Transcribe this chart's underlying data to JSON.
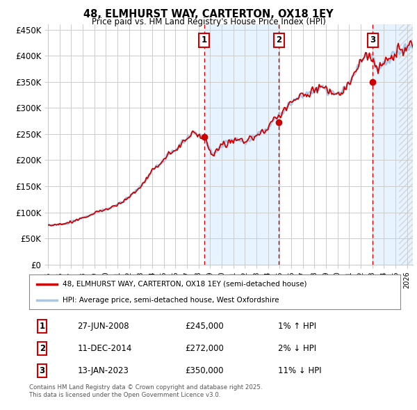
{
  "title": "48, ELMHURST WAY, CARTERTON, OX18 1EY",
  "subtitle": "Price paid vs. HM Land Registry's House Price Index (HPI)",
  "ylabel_ticks": [
    "£0",
    "£50K",
    "£100K",
    "£150K",
    "£200K",
    "£250K",
    "£300K",
    "£350K",
    "£400K",
    "£450K"
  ],
  "ytick_vals": [
    0,
    50000,
    100000,
    150000,
    200000,
    250000,
    300000,
    350000,
    400000,
    450000
  ],
  "ylim": [
    0,
    460000
  ],
  "xlim_start": 1995.0,
  "xlim_end": 2026.5,
  "hpi_color": "#a8c8e8",
  "price_color": "#cc0000",
  "vline_color": "#cc0000",
  "shade_color": "#ddeeff",
  "purchase_dates": [
    2008.49,
    2014.95,
    2023.04
  ],
  "purchase_prices": [
    245000,
    272000,
    350000
  ],
  "legend_label1": "48, ELMHURST WAY, CARTERTON, OX18 1EY (semi-detached house)",
  "legend_label2": "HPI: Average price, semi-detached house, West Oxfordshire",
  "table_data": [
    [
      "1",
      "27-JUN-2008",
      "£245,000",
      "1% ↑ HPI"
    ],
    [
      "2",
      "11-DEC-2014",
      "£272,000",
      "2% ↓ HPI"
    ],
    [
      "3",
      "13-JAN-2023",
      "£350,000",
      "11% ↓ HPI"
    ]
  ],
  "footer": "Contains HM Land Registry data © Crown copyright and database right 2025.\nThis data is licensed under the Open Government Licence v3.0.",
  "background_color": "#ffffff",
  "grid_color": "#cccccc"
}
